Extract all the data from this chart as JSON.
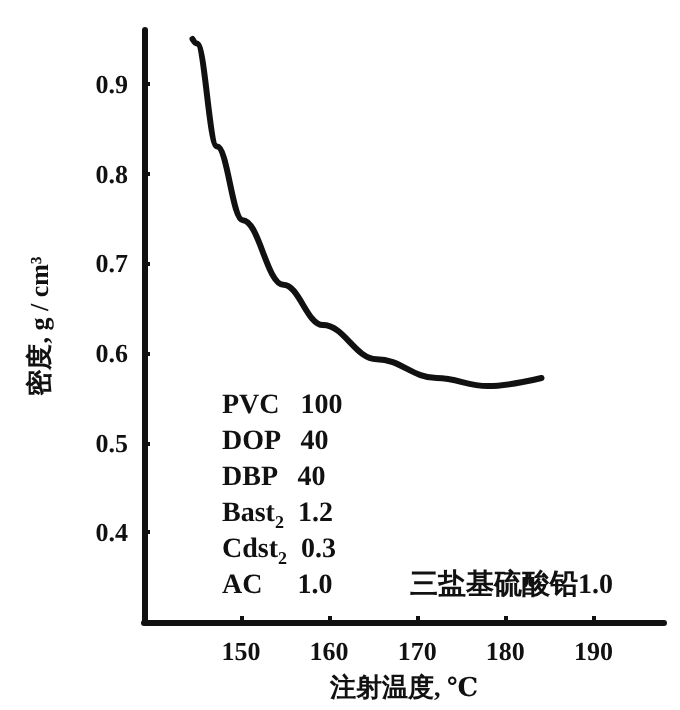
{
  "chart_data": {
    "type": "line",
    "xlabel": "注射温度, ℃",
    "ylabel": "密度, g / cm³",
    "x": [
      144.5,
      145,
      147.3,
      150.2,
      154.8,
      159.3,
      165.4,
      172.2,
      178,
      184.1
    ],
    "series": [
      {
        "color": "#111111",
        "values": [
          0.95,
          0.945,
          0.83,
          0.748,
          0.676,
          0.631,
          0.593,
          0.572,
          0.563,
          0.572
        ]
      }
    ],
    "xlim": [
      139,
      198
    ],
    "xticks": [
      150,
      160,
      170,
      180,
      190
    ],
    "ylim": [
      0.3,
      0.96
    ],
    "yticks": [
      0.4,
      0.5,
      0.6,
      0.7,
      0.8,
      0.9
    ],
    "grid": false,
    "marker": "none",
    "line_style": "solid",
    "annotations": [
      "PVC   100",
      "DOP   40",
      "DBP   40",
      "Bast$_{2}$  1.2",
      "Cdst$_{2}$  0.3",
      "AC     1.0",
      "三盐基硫酸铅1.0"
    ]
  }
}
